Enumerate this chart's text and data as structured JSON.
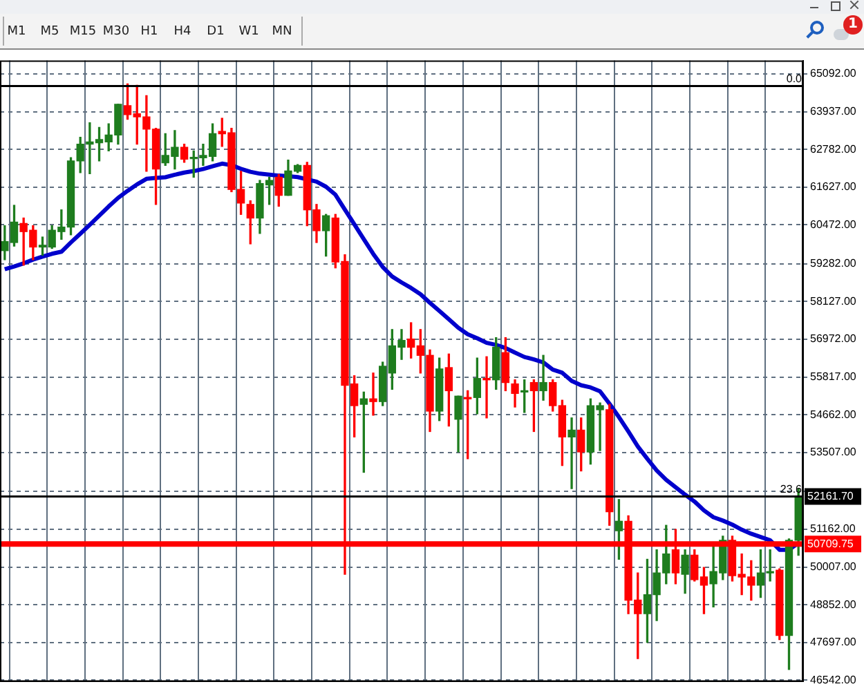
{
  "chart_data": {
    "type": "candlestick",
    "categories": [
      null,
      null,
      null,
      null,
      null,
      null,
      null,
      null,
      null,
      null,
      null,
      null,
      null,
      null,
      null,
      null,
      null,
      null,
      null,
      null,
      null,
      null,
      null,
      null,
      null,
      null,
      null,
      null,
      null,
      null,
      null,
      null,
      null,
      null,
      null,
      null,
      null,
      null,
      null,
      null,
      null,
      null,
      null,
      null,
      null,
      null,
      null,
      null,
      null,
      null,
      null,
      null,
      null,
      null,
      null,
      null,
      null,
      null,
      null,
      null,
      null,
      null,
      null,
      null,
      null,
      null,
      null,
      null,
      null,
      null,
      null,
      null,
      null,
      null,
      null,
      null,
      null,
      null,
      null,
      null,
      null,
      null,
      null,
      null,
      null
    ],
    "ohlc": [
      [
        59684,
        60447,
        59407,
        59961
      ],
      [
        59933,
        61071,
        59823,
        60557
      ],
      [
        60516,
        60682,
        59240,
        60266
      ],
      [
        60308,
        60447,
        59407,
        59795
      ],
      [
        59795,
        60100,
        59545,
        59850
      ],
      [
        59795,
        60447,
        59753,
        60308
      ],
      [
        60266,
        60932,
        60031,
        60405
      ],
      [
        60405,
        62527,
        60169,
        62430
      ],
      [
        62430,
        63151,
        62069,
        62943
      ],
      [
        62943,
        63594,
        62041,
        63012
      ],
      [
        62984,
        63456,
        62430,
        63081
      ],
      [
        63012,
        63567,
        62735,
        63220
      ],
      [
        63220,
        64163,
        62943,
        64163
      ],
      [
        64121,
        64787,
        63705,
        63844
      ],
      [
        63872,
        64745,
        62943,
        63775
      ],
      [
        63775,
        64426,
        62111,
        63400
      ],
      [
        63400,
        63428,
        61098,
        62180
      ],
      [
        62374,
        63262,
        62291,
        62596
      ],
      [
        62568,
        63359,
        62180,
        62846
      ],
      [
        62846,
        62943,
        62388,
        62485
      ],
      [
        62499,
        62735,
        61930,
        62527
      ],
      [
        62527,
        62943,
        62291,
        62596
      ],
      [
        62568,
        63567,
        62430,
        63262
      ],
      [
        63331,
        63733,
        62873,
        63262
      ],
      [
        63289,
        63428,
        61487,
        61556
      ],
      [
        61556,
        62111,
        60793,
        61140
      ],
      [
        61098,
        61209,
        59892,
        60682
      ],
      [
        60682,
        61833,
        60211,
        61736
      ],
      [
        61695,
        61930,
        61098,
        61833
      ],
      [
        61930,
        62014,
        61043,
        61376
      ],
      [
        61376,
        62457,
        61376,
        62124
      ],
      [
        62111,
        62319,
        62069,
        62291
      ],
      [
        62291,
        62388,
        60447,
        60932
      ],
      [
        60932,
        61098,
        59933,
        60294
      ],
      [
        60294,
        60793,
        59517,
        60752
      ],
      [
        60682,
        60793,
        59157,
        59337
      ],
      [
        59351,
        59559,
        49783,
        55566
      ],
      [
        55607,
        55857,
        53985,
        54942
      ],
      [
        54983,
        55358,
        52903,
        55150
      ],
      [
        55150,
        55940,
        54650,
        55066
      ],
      [
        55066,
        56273,
        54942,
        56148
      ],
      [
        55940,
        57271,
        55441,
        56772
      ],
      [
        56730,
        57271,
        56356,
        56938
      ],
      [
        56980,
        57479,
        56398,
        56730
      ],
      [
        56772,
        57271,
        55940,
        56481
      ],
      [
        56481,
        56647,
        54151,
        54775
      ],
      [
        54775,
        56398,
        54484,
        56065
      ],
      [
        56106,
        56522,
        54318,
        55399
      ],
      [
        54526,
        55233,
        53527,
        55233
      ],
      [
        55191,
        55399,
        53319,
        55150
      ],
      [
        55191,
        56398,
        54692,
        55774
      ],
      [
        55774,
        56439,
        54567,
        55732
      ],
      [
        55732,
        57022,
        55441,
        56730
      ],
      [
        56564,
        57022,
        55399,
        55649
      ],
      [
        55607,
        55732,
        54900,
        55316
      ],
      [
        55358,
        55732,
        54734,
        55399
      ],
      [
        55649,
        55732,
        54151,
        55399
      ],
      [
        55399,
        56481,
        55108,
        55649
      ],
      [
        55649,
        55732,
        54775,
        54942
      ],
      [
        54942,
        55108,
        53111,
        53985
      ],
      [
        53985,
        54567,
        52404,
        54193
      ],
      [
        54193,
        54567,
        52945,
        53527
      ],
      [
        53527,
        55150,
        53153,
        54942
      ],
      [
        54817,
        55025,
        53569,
        54942
      ],
      [
        54817,
        54983,
        51281,
        51697
      ],
      [
        51114,
        52071,
        50241,
        51406
      ],
      [
        51406,
        51572,
        48577,
        48993
      ],
      [
        48993,
        49825,
        47204,
        48577
      ],
      [
        48577,
        50241,
        47703,
        49159
      ],
      [
        49159,
        50532,
        48369,
        49825
      ],
      [
        49825,
        51281,
        49492,
        50407
      ],
      [
        50532,
        51156,
        49492,
        49825
      ],
      [
        49783,
        50532,
        49201,
        50366
      ],
      [
        50366,
        50532,
        49575,
        49617
      ],
      [
        49700,
        49991,
        48577,
        49450
      ],
      [
        49492,
        50615,
        48785,
        49866
      ],
      [
        49825,
        50948,
        49617,
        50823
      ],
      [
        50823,
        50948,
        49575,
        49742
      ],
      [
        49783,
        50407,
        49159,
        49700
      ],
      [
        49700,
        50199,
        48993,
        49450
      ],
      [
        49450,
        50532,
        49076,
        49825
      ],
      [
        49825,
        50532,
        49575,
        49866
      ],
      [
        49908,
        49950,
        47786,
        47911
      ],
      [
        47911,
        50865,
        46871,
        50823
      ],
      [
        50823,
        52404,
        50366,
        52162
      ]
    ],
    "colors": [
      "#1e7d1e",
      "#1e7d1e",
      "#ff0000",
      "#ff0000",
      "#1e7d1e",
      "#1e7d1e",
      "#1e7d1e",
      "#1e7d1e",
      "#1e7d1e",
      "#1e7d1e",
      "#1e7d1e",
      "#1e7d1e",
      "#1e7d1e",
      "#ff0000",
      "#ff0000",
      "#ff0000",
      "#ff0000",
      "#1e7d1e",
      "#1e7d1e",
      "#ff0000",
      "#1e7d1e",
      "#1e7d1e",
      "#1e7d1e",
      "#ff0000",
      "#ff0000",
      "#ff0000",
      "#ff0000",
      "#1e7d1e",
      "#1e7d1e",
      "#ff0000",
      "#1e7d1e",
      "#1e7d1e",
      "#ff0000",
      "#ff0000",
      "#1e7d1e",
      "#ff0000",
      "#ff0000",
      "#ff0000",
      "#1e7d1e",
      "#ff0000",
      "#1e7d1e",
      "#1e7d1e",
      "#1e7d1e",
      "#ff0000",
      "#ff0000",
      "#ff0000",
      "#1e7d1e",
      "#ff0000",
      "#1e7d1e",
      "#ff0000",
      "#1e7d1e",
      "#ff0000",
      "#1e7d1e",
      "#ff0000",
      "#ff0000",
      "#1e7d1e",
      "#ff0000",
      "#1e7d1e",
      "#ff0000",
      "#ff0000",
      "#1e7d1e",
      "#ff0000",
      "#1e7d1e",
      "#1e7d1e",
      "#ff0000",
      "#1e7d1e",
      "#ff0000",
      "#ff0000",
      "#1e7d1e",
      "#1e7d1e",
      "#1e7d1e",
      "#ff0000",
      "#1e7d1e",
      "#ff0000",
      "#ff0000",
      "#1e7d1e",
      "#1e7d1e",
      "#ff0000",
      "#ff0000",
      "#ff0000",
      "#1e7d1e",
      "#1e7d1e",
      "#ff0000",
      "#1e7d1e",
      "#1e7d1e"
    ],
    "series": [
      {
        "type": "line",
        "color": "#0000cc",
        "values": [
          59114,
          59201,
          59297,
          59409,
          59501,
          59588,
          59651,
          59934,
          60200,
          60474,
          60753,
          61036,
          61298,
          61514,
          61710,
          61880,
          61910,
          61930,
          62005,
          62072,
          62118,
          62180,
          62263,
          62346,
          62296,
          62188,
          62097,
          62039,
          62009,
          61980,
          61960,
          61935,
          61864,
          61793,
          61639,
          61394,
          60940,
          60491,
          60033,
          59584,
          59185,
          58894,
          58711,
          58544,
          58353,
          58087,
          57837,
          57583,
          57325,
          57126,
          57005,
          56864,
          56801,
          56705,
          56564,
          56431,
          56356,
          56264,
          56044,
          55948,
          55699,
          55566,
          55499,
          55383,
          55000,
          54592,
          54151,
          53694,
          53319,
          52961,
          52674,
          52446,
          52221,
          52009,
          51738,
          51530,
          51426,
          51302,
          51148,
          51023,
          50923,
          50823,
          50532,
          50532,
          50740
        ]
      }
    ],
    "ylim": [
      46500,
      65500
    ],
    "yticks": [
      {
        "value": 65092,
        "label": "65092.00"
      },
      {
        "value": 63937,
        "label": "63937.00"
      },
      {
        "value": 62782,
        "label": "62782.00"
      },
      {
        "value": 61627,
        "label": "61627.00"
      },
      {
        "value": 60472,
        "label": "60472.00"
      },
      {
        "value": 59282,
        "label": "59282.00"
      },
      {
        "value": 58127,
        "label": "58127.00"
      },
      {
        "value": 56972,
        "label": "56972.00"
      },
      {
        "value": 55817,
        "label": "55817.00"
      },
      {
        "value": 54662,
        "label": "54662.00"
      },
      {
        "value": 53507,
        "label": "53507.00"
      },
      {
        "value": 52317,
        "label": null
      },
      {
        "value": 51162,
        "label": "51162.00"
      },
      {
        "value": 50007,
        "label": "50007.00"
      },
      {
        "value": 48852,
        "label": "48852.00"
      },
      {
        "value": 47697,
        "label": "47697.00"
      },
      {
        "value": 46542,
        "label": "46542.00"
      }
    ],
    "ref_lines": [
      {
        "axis": "y",
        "value": 64718,
        "color": "#000000"
      },
      {
        "axis": "y",
        "value": 52161.7,
        "label": "52161.70",
        "color": "#000000"
      },
      {
        "axis": "y",
        "value": 50709.75,
        "label": "50709.75",
        "color": "#ff0000"
      }
    ],
    "annotations": [
      "M1",
      "M5",
      "M15",
      "M30",
      "H1",
      "H4",
      "D1",
      "W1",
      "MN",
      "1",
      {
        "text": "0.0",
        "y": 64718
      },
      {
        "text": "23.6",
        "y": 52161.7
      }
    ],
    "grid": true,
    "legend": false,
    "tick_labels": "y"
  }
}
